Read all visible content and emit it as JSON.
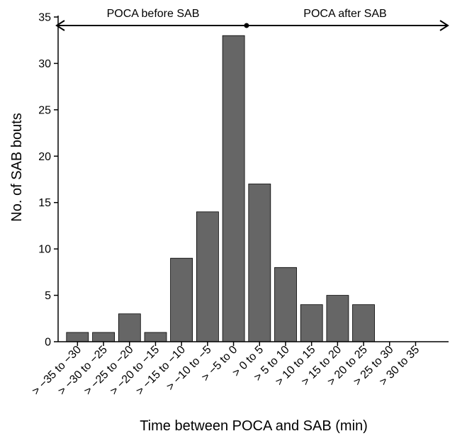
{
  "chart_data": {
    "type": "bar",
    "xlabel": "Time between POCA and SAB (min)",
    "ylabel": "No. of SAB bouts",
    "ylim": [
      0,
      35
    ],
    "yticks": [
      0,
      5,
      10,
      15,
      20,
      25,
      30,
      35
    ],
    "grid": false,
    "bar_color": "#666666",
    "categories": [
      "> −35 to −30",
      "> −30 to −25",
      "> −25 to −20",
      "> −20 to −15",
      "> −15 to −10",
      "> −10 to −5",
      "> −5 to 0",
      "> 0 to 5",
      "> 5 to 10",
      "> 10 to 15",
      "> 15 to 20",
      "> 20 to 25",
      "> 25 to 30",
      "> 30 to 35"
    ],
    "values": [
      1,
      1,
      3,
      1,
      9,
      14,
      33,
      17,
      8,
      4,
      5,
      4,
      0,
      0
    ],
    "annotations": {
      "before_label": "POCA before SAB",
      "after_label": "POCA after SAB"
    }
  }
}
